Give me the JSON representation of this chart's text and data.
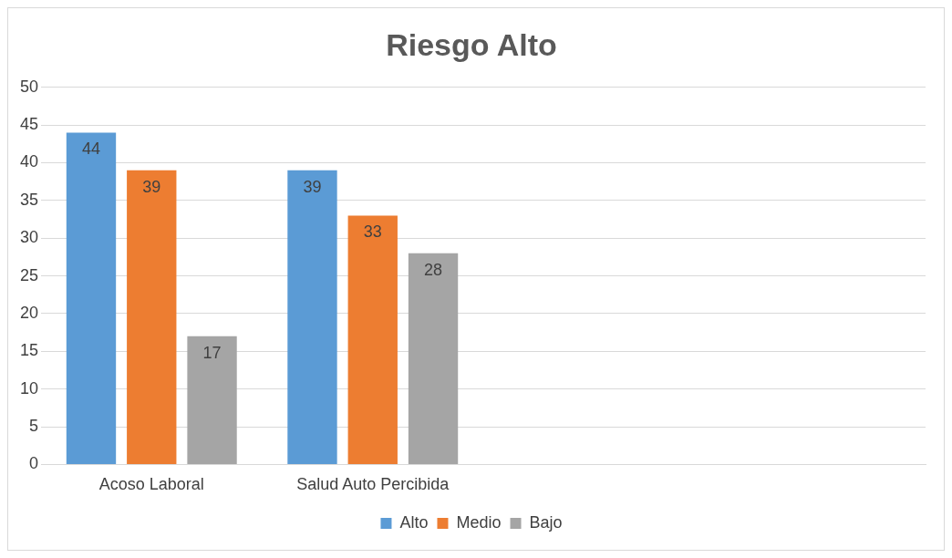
{
  "chart_data": {
    "type": "bar",
    "title": "Riesgo Alto",
    "categories": [
      "Acoso Laboral",
      "Salud Auto Percibida",
      null,
      null
    ],
    "series": [
      {
        "name": "Alto",
        "color": "#5b9bd5",
        "values": [
          44,
          39,
          null,
          null
        ]
      },
      {
        "name": "Medio",
        "color": "#ed7d31",
        "values": [
          39,
          33,
          null,
          null
        ]
      },
      {
        "name": "Bajo",
        "color": "#a5a5a5",
        "values": [
          17,
          28,
          null,
          null
        ]
      }
    ],
    "ylim": [
      0,
      50
    ],
    "yticks": [
      0,
      5,
      10,
      15,
      20,
      25,
      30,
      35,
      40,
      45,
      50
    ],
    "grid": "y",
    "legend": "bottom",
    "data_labels": true
  }
}
